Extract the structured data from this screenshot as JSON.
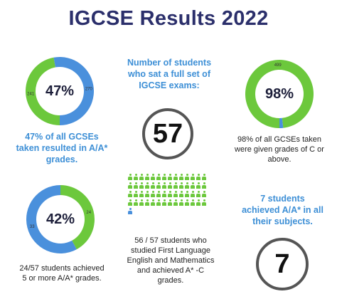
{
  "title": "IGCSE Results 2022",
  "colors": {
    "green": "#6cc83c",
    "blue": "#4a90dc",
    "title": "#2b2f6b",
    "text_blue": "#3d8fd6"
  },
  "chart_data": [
    {
      "type": "pie",
      "variant": "donut",
      "slices": [
        {
          "label": "241",
          "value": 241,
          "color": "#6cc83c"
        },
        {
          "label": "270",
          "value": 270,
          "color": "#4a90dc"
        }
      ],
      "center_label": "47%",
      "caption": "47% of all GCSEs taken resulted in A/A* grades."
    },
    {
      "type": "pie",
      "variant": "donut",
      "slices": [
        {
          "label": "499",
          "value": 499,
          "color": "#6cc83c"
        },
        {
          "label": "",
          "value": 9,
          "color": "#4a90dc"
        }
      ],
      "center_label": "98%",
      "caption": "98% of all GCSEs taken were given grades of C or above."
    },
    {
      "type": "pie",
      "variant": "donut",
      "slices": [
        {
          "label": "24",
          "value": 24,
          "color": "#6cc83c"
        },
        {
          "label": "33",
          "value": 33,
          "color": "#4a90dc"
        }
      ],
      "center_label": "42%",
      "caption": "24/57 students achieved 5 or more A/A* grades."
    }
  ],
  "stat_full_set": {
    "heading": "Number of students who sat a full set of IGCSE exams:",
    "value": "57"
  },
  "pictogram": {
    "highlighted": 56,
    "total": 57,
    "caption": "56 / 57 students who studied First Language English and Mathematics and achieved A* -C grades."
  },
  "stat_all_subjects": {
    "heading": "7 students achieved A/A* in all their subjects.",
    "value": "7"
  }
}
